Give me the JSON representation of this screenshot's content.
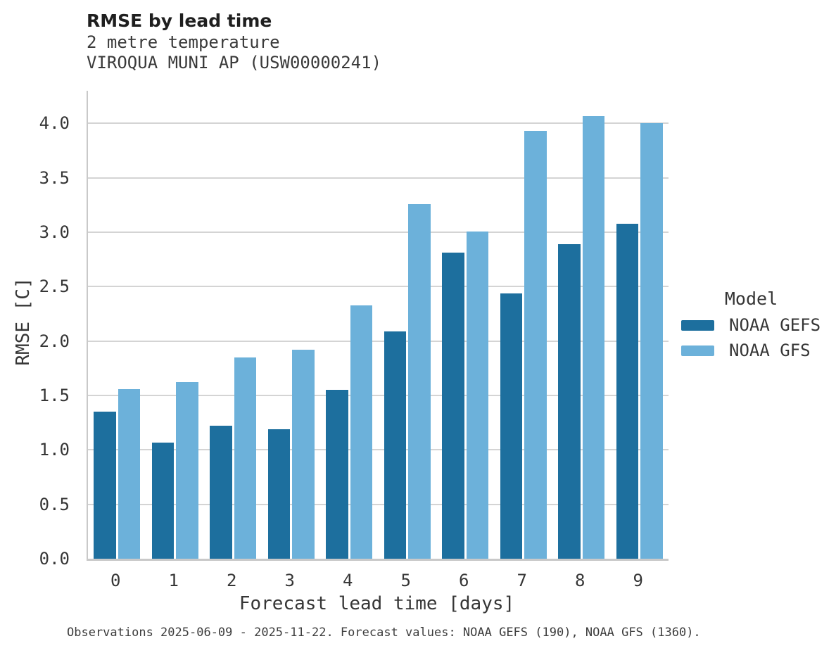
{
  "header": {
    "title": "RMSE by lead time",
    "subtitle_variable": "2 metre temperature",
    "subtitle_station": "VIROQUA MUNI AP (USW00000241)"
  },
  "footer": {
    "caption": "Observations 2025-06-09 - 2025-11-22. Forecast values: NOAA GEFS (190), NOAA GFS (1360)."
  },
  "colors": {
    "gefs_dark_blue": "#1d6f9e",
    "gfs_light_blue": "#6cb1da",
    "gridline": "#d4d4d4",
    "spine": "#c9c9c9",
    "text": "#363636"
  },
  "chart_data": {
    "type": "bar",
    "title": "RMSE by lead time",
    "subtitle": [
      "2 metre temperature",
      "VIROQUA MUNI AP (USW00000241)"
    ],
    "categories": [
      "0",
      "1",
      "2",
      "3",
      "4",
      "5",
      "6",
      "7",
      "8",
      "9"
    ],
    "series": [
      {
        "name": "NOAA GEFS",
        "color": "#1d6f9e",
        "values": [
          1.35,
          1.07,
          1.22,
          1.19,
          1.55,
          2.09,
          2.81,
          2.44,
          2.89,
          3.08
        ]
      },
      {
        "name": "NOAA GFS",
        "color": "#6cb1da",
        "values": [
          1.56,
          1.62,
          1.85,
          1.92,
          2.33,
          3.26,
          3.01,
          3.93,
          4.07,
          4.0
        ]
      }
    ],
    "xlabel": "Forecast lead time [days]",
    "ylabel": "RMSE [C]",
    "ylim": [
      0,
      4.3
    ],
    "yticks": [
      0.0,
      0.5,
      1.0,
      1.5,
      2.0,
      2.5,
      3.0,
      3.5,
      4.0
    ],
    "grid": true,
    "legend_title": "Model",
    "legend_position": "right"
  }
}
